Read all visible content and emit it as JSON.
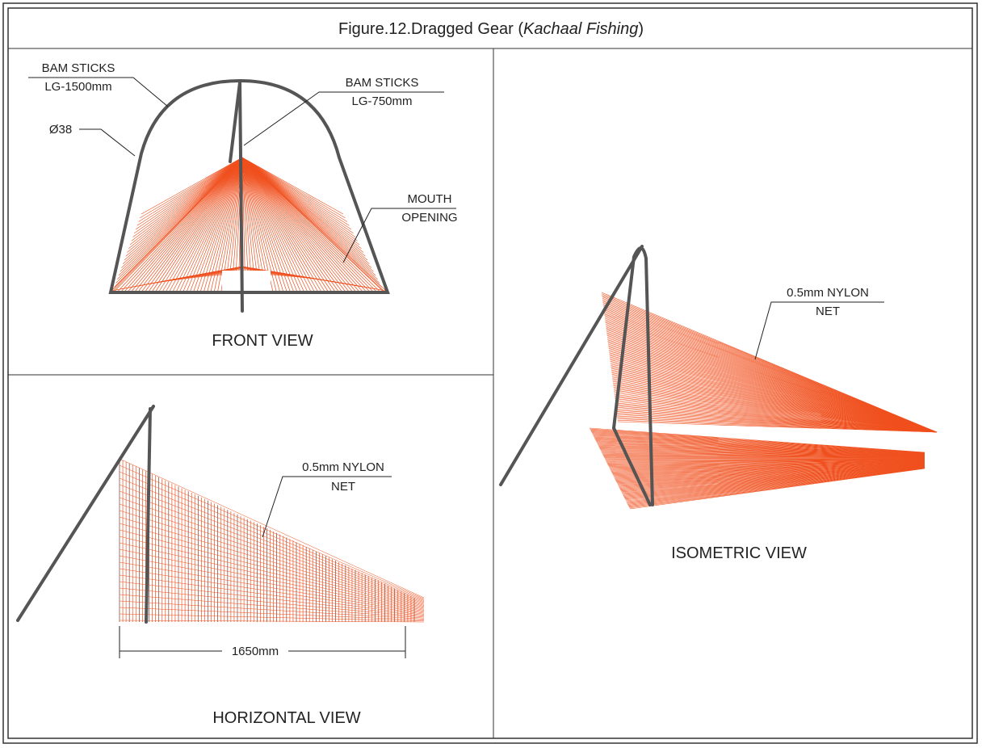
{
  "title": {
    "prefix": "Figure.12.Dragged Gear (",
    "italic": "Kachaal Fishing",
    "suffix": ")"
  },
  "front_view": {
    "labels": [
      "BAM STICKS",
      "LG-1500mm",
      "Ø38",
      "BAM STICKS",
      "LG-750mm",
      "MOUTH",
      "OPENING"
    ],
    "caption": "FRONT VIEW"
  },
  "horizontal_view": {
    "labels": [
      "0.5mm NYLON",
      "NET",
      "1650mm"
    ],
    "caption": "HORIZONTAL VIEW"
  },
  "isometric_view": {
    "labels": [
      "0.5mm NYLON",
      "NET"
    ],
    "caption": "ISOMETRIC VIEW"
  }
}
